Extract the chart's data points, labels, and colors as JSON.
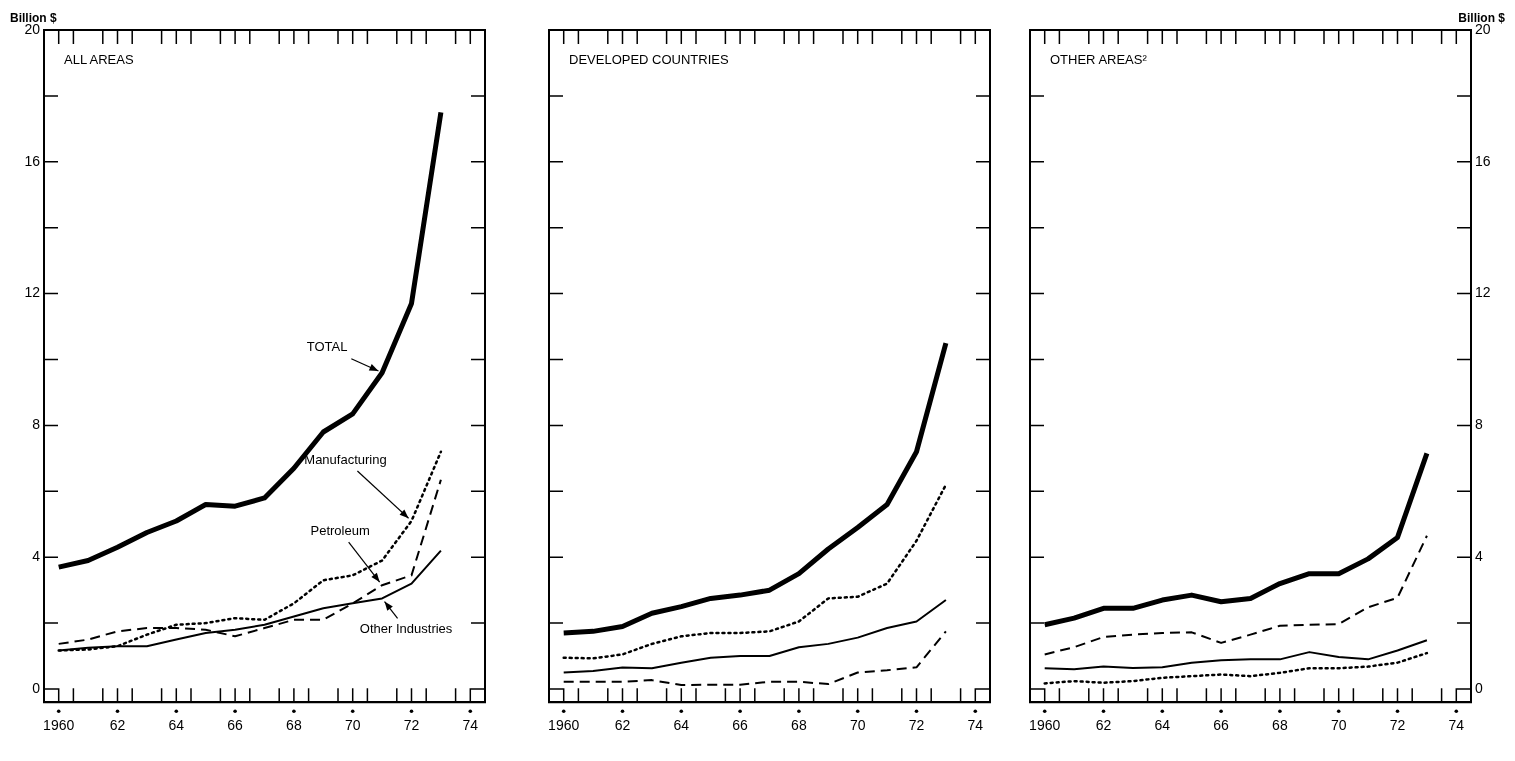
{
  "chart_data": [
    {
      "type": "line",
      "title": "ALL AREAS",
      "ylabel": "Billion $",
      "x": [
        "1960",
        "1961",
        "1962",
        "1963",
        "1964",
        "1965",
        "1966",
        "1967",
        "1968",
        "1969",
        "1970",
        "1971",
        "1972",
        "1973"
      ],
      "xlim": [
        "1959-07",
        "1974-07"
      ],
      "xticks": [
        {
          "value": "1960",
          "label": "1960"
        },
        {
          "value": "1960-07",
          "label": null
        },
        {
          "value": "1961-07",
          "label": null
        },
        {
          "value": "1962",
          "label": "62"
        },
        {
          "value": "1962-07",
          "label": null
        },
        {
          "value": "1963-07",
          "label": null
        },
        {
          "value": "1964",
          "label": "64"
        },
        {
          "value": "1964-07",
          "label": null
        },
        {
          "value": "1965-07",
          "label": null
        },
        {
          "value": "1966",
          "label": "66"
        },
        {
          "value": "1966-07",
          "label": null
        },
        {
          "value": "1967-07",
          "label": null
        },
        {
          "value": "1968",
          "label": "68"
        },
        {
          "value": "1968-07",
          "label": null
        },
        {
          "value": "1969-07",
          "label": null
        },
        {
          "value": "1970",
          "label": "70"
        },
        {
          "value": "1970-07",
          "label": null
        },
        {
          "value": "1971-07",
          "label": null
        },
        {
          "value": "1972",
          "label": "72"
        },
        {
          "value": "1972-07",
          "label": null
        },
        {
          "value": "1973-07",
          "label": null
        },
        {
          "value": "1974",
          "label": "74"
        }
      ],
      "ylim": [
        -0.4,
        20
      ],
      "yticks": [
        0,
        {
          "value": 2,
          "label": null
        },
        4,
        {
          "value": 6,
          "label": null
        },
        8,
        {
          "value": 10,
          "label": null
        },
        12,
        {
          "value": 14,
          "label": null
        },
        16,
        {
          "value": 18,
          "label": null
        },
        20
      ],
      "series": [
        {
          "color": "#000000",
          "line_style": "solid",
          "values": [
            3.7,
            3.9,
            4.3,
            4.75,
            5.1,
            5.6,
            5.55,
            5.8,
            6.7,
            7.8,
            8.35,
            9.6,
            11.7,
            17.5
          ]
        },
        {
          "color": "#000000",
          "line_style": "dotted",
          "values": [
            1.17,
            1.2,
            1.3,
            1.65,
            1.95,
            2.0,
            2.15,
            2.1,
            2.6,
            3.3,
            3.45,
            3.9,
            5.1,
            7.2
          ]
        },
        {
          "color": "#000000",
          "line_style": "dashed",
          "values": [
            1.37,
            1.5,
            1.75,
            1.85,
            1.85,
            1.8,
            1.6,
            1.85,
            2.1,
            2.1,
            2.6,
            3.15,
            3.45,
            6.35
          ]
        },
        {
          "color": "#000000",
          "line_style": "solid",
          "values": [
            1.17,
            1.25,
            1.3,
            1.3,
            1.5,
            1.7,
            1.8,
            1.95,
            2.2,
            2.45,
            2.6,
            2.75,
            3.2,
            4.2
          ]
        }
      ],
      "annotations": [
        {
          "text": "TOTAL",
          "x": "1971",
          "y": 9.6
        },
        {
          "text": "Manufacturing",
          "x": "1972",
          "y": 5.1
        },
        {
          "text": "Petroleum",
          "x": "1971",
          "y": 3.15
        },
        {
          "text": "Other Industries",
          "x": "1971",
          "y": 2.75
        }
      ]
    },
    {
      "type": "line",
      "title": "DEVELOPED COUNTRIES",
      "tick_labels": "x",
      "x": [
        "1960",
        "1961",
        "1962",
        "1963",
        "1964",
        "1965",
        "1966",
        "1967",
        "1968",
        "1969",
        "1970",
        "1971",
        "1972",
        "1973"
      ],
      "xlim": [
        "1959-07",
        "1974-07"
      ],
      "xticks": [
        {
          "value": "1960",
          "label": "1960"
        },
        {
          "value": "1960-07",
          "label": null
        },
        {
          "value": "1961-07",
          "label": null
        },
        {
          "value": "1962",
          "label": "62"
        },
        {
          "value": "1962-07",
          "label": null
        },
        {
          "value": "1963-07",
          "label": null
        },
        {
          "value": "1964",
          "label": "64"
        },
        {
          "value": "1964-07",
          "label": null
        },
        {
          "value": "1965-07",
          "label": null
        },
        {
          "value": "1966",
          "label": "66"
        },
        {
          "value": "1966-07",
          "label": null
        },
        {
          "value": "1967-07",
          "label": null
        },
        {
          "value": "1968",
          "label": "68"
        },
        {
          "value": "1968-07",
          "label": null
        },
        {
          "value": "1969-07",
          "label": null
        },
        {
          "value": "1970",
          "label": "70"
        },
        {
          "value": "1970-07",
          "label": null
        },
        {
          "value": "1971-07",
          "label": null
        },
        {
          "value": "1972",
          "label": "72"
        },
        {
          "value": "1972-07",
          "label": null
        },
        {
          "value": "1973-07",
          "label": null
        },
        {
          "value": "1974",
          "label": "74"
        }
      ],
      "ylim": [
        -0.4,
        20
      ],
      "yticks": [
        0,
        {
          "value": 2,
          "label": null
        },
        4,
        {
          "value": 6,
          "label": null
        },
        8,
        {
          "value": 10,
          "label": null
        },
        12,
        {
          "value": 14,
          "label": null
        },
        16,
        {
          "value": 18,
          "label": null
        },
        20
      ],
      "series": [
        {
          "color": "#000000",
          "line_style": "solid",
          "values": [
            1.7,
            1.75,
            1.9,
            2.3,
            2.5,
            2.75,
            2.85,
            3.0,
            3.5,
            4.25,
            4.9,
            5.6,
            7.2,
            10.5
          ]
        },
        {
          "color": "#000000",
          "line_style": "dotted",
          "values": [
            0.95,
            0.93,
            1.05,
            1.37,
            1.6,
            1.7,
            1.7,
            1.75,
            2.05,
            2.75,
            2.8,
            3.2,
            4.5,
            6.2
          ]
        },
        {
          "color": "#000000",
          "line_style": "dashed",
          "values": [
            0.22,
            0.22,
            0.22,
            0.27,
            0.12,
            0.13,
            0.13,
            0.22,
            0.22,
            0.15,
            0.5,
            0.57,
            0.66,
            1.75
          ]
        },
        {
          "color": "#000000",
          "line_style": "solid",
          "values": [
            0.5,
            0.55,
            0.65,
            0.63,
            0.8,
            0.95,
            1.0,
            1.0,
            1.27,
            1.37,
            1.56,
            1.85,
            2.05,
            2.7
          ]
        }
      ]
    },
    {
      "type": "line",
      "title": "OTHER AREAS²",
      "ylabel": "Billion $",
      "x": [
        "1960",
        "1961",
        "1962",
        "1963",
        "1964",
        "1965",
        "1966",
        "1967",
        "1968",
        "1969",
        "1970",
        "1971",
        "1972",
        "1973"
      ],
      "xlim": [
        "1959-07",
        "1974-07"
      ],
      "xticks": [
        {
          "value": "1960",
          "label": "1960"
        },
        {
          "value": "1960-07",
          "label": null
        },
        {
          "value": "1961-07",
          "label": null
        },
        {
          "value": "1962",
          "label": "62"
        },
        {
          "value": "1962-07",
          "label": null
        },
        {
          "value": "1963-07",
          "label": null
        },
        {
          "value": "1964",
          "label": "64"
        },
        {
          "value": "1964-07",
          "label": null
        },
        {
          "value": "1965-07",
          "label": null
        },
        {
          "value": "1966",
          "label": "66"
        },
        {
          "value": "1966-07",
          "label": null
        },
        {
          "value": "1967-07",
          "label": null
        },
        {
          "value": "1968",
          "label": "68"
        },
        {
          "value": "1968-07",
          "label": null
        },
        {
          "value": "1969-07",
          "label": null
        },
        {
          "value": "1970",
          "label": "70"
        },
        {
          "value": "1970-07",
          "label": null
        },
        {
          "value": "1971-07",
          "label": null
        },
        {
          "value": "1972",
          "label": "72"
        },
        {
          "value": "1972-07",
          "label": null
        },
        {
          "value": "1973-07",
          "label": null
        },
        {
          "value": "1974",
          "label": "74"
        }
      ],
      "ylim": [
        -0.4,
        20
      ],
      "yticks": [
        0,
        {
          "value": 2,
          "label": null
        },
        4,
        {
          "value": 6,
          "label": null
        },
        8,
        {
          "value": 10,
          "label": null
        },
        12,
        {
          "value": 14,
          "label": null
        },
        16,
        {
          "value": 18,
          "label": null
        },
        20
      ],
      "series": [
        {
          "color": "#000000",
          "line_style": "solid",
          "values": [
            1.95,
            2.15,
            2.45,
            2.45,
            2.7,
            2.85,
            2.65,
            2.75,
            3.2,
            3.5,
            3.5,
            3.95,
            4.6,
            7.15
          ]
        },
        {
          "color": "#000000",
          "line_style": "dotted",
          "values": [
            0.17,
            0.24,
            0.19,
            0.24,
            0.34,
            0.39,
            0.44,
            0.39,
            0.49,
            0.63,
            0.63,
            0.68,
            0.8,
            1.09
          ]
        },
        {
          "color": "#000000",
          "line_style": "dashed",
          "values": [
            1.05,
            1.27,
            1.58,
            1.65,
            1.7,
            1.72,
            1.4,
            1.65,
            1.92,
            1.95,
            1.97,
            2.48,
            2.77,
            4.65
          ]
        },
        {
          "color": "#000000",
          "line_style": "solid",
          "values": [
            0.63,
            0.6,
            0.68,
            0.64,
            0.66,
            0.8,
            0.87,
            0.9,
            0.9,
            1.12,
            0.97,
            0.9,
            1.17,
            1.48
          ]
        }
      ]
    }
  ]
}
